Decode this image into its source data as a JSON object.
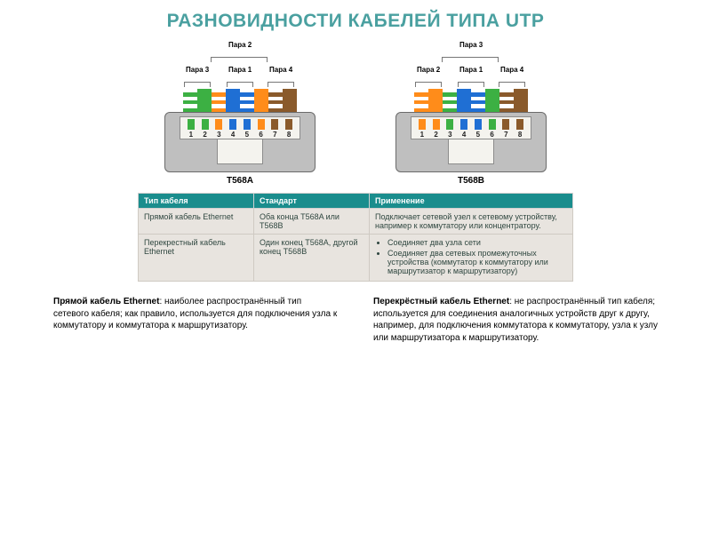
{
  "title": "РАЗНОВИДНОСТИ КАБЕЛЕЙ ТИПА UTP",
  "title_color": "#4aa0a0",
  "colors": {
    "green": "#3cb043",
    "orange": "#ff8c1a",
    "blue": "#1f6fd4",
    "brown": "#8a5a2b",
    "white": "#ffffff",
    "jack_body": "#bfbfbf",
    "jack_border": "#6b6b6b",
    "slot_bg": "#f4f3ee",
    "table_header_bg": "#1a8d8d",
    "table_cell_bg": "#e8e4df"
  },
  "connectors": [
    {
      "id": "t568a",
      "label": "T568A",
      "top_pair_label": "Пара 2",
      "bottom_pair_labels": [
        "Пара 3",
        "Пара 1",
        "Пара 4"
      ],
      "wires": [
        {
          "type": "striped",
          "stripe": "green"
        },
        {
          "type": "solid",
          "solid": "green"
        },
        {
          "type": "striped",
          "stripe": "orange"
        },
        {
          "type": "solid",
          "solid": "blue"
        },
        {
          "type": "striped",
          "stripe": "blue"
        },
        {
          "type": "solid",
          "solid": "orange"
        },
        {
          "type": "striped",
          "stripe": "brown"
        },
        {
          "type": "solid",
          "solid": "brown"
        }
      ]
    },
    {
      "id": "t568b",
      "label": "T568B",
      "top_pair_label": "Пара 3",
      "bottom_pair_labels": [
        "Пара 2",
        "Пара 1",
        "Пара 4"
      ],
      "wires": [
        {
          "type": "striped",
          "stripe": "orange"
        },
        {
          "type": "solid",
          "solid": "orange"
        },
        {
          "type": "striped",
          "stripe": "green"
        },
        {
          "type": "solid",
          "solid": "blue"
        },
        {
          "type": "striped",
          "stripe": "blue"
        },
        {
          "type": "solid",
          "solid": "green"
        },
        {
          "type": "striped",
          "stripe": "brown"
        },
        {
          "type": "solid",
          "solid": "brown"
        }
      ]
    }
  ],
  "pin_numbers": [
    "1",
    "2",
    "3",
    "4",
    "5",
    "6",
    "7",
    "8"
  ],
  "table": {
    "headers": [
      "Тип кабеля",
      "Стандарт",
      "Применение"
    ],
    "rows": [
      {
        "c1": "Прямой кабель Ethernet",
        "c2": "Оба конца T568A или T568B",
        "c3_text": "Подключает сетевой узел к сетевому устройству, например к коммутатору или концентратору.",
        "c3_list": null
      },
      {
        "c1": "Перекрестный кабель Ethernet",
        "c2": "Один конец T568A, другой конец T568B",
        "c3_text": null,
        "c3_list": [
          "Соединяет два узла сети",
          "Соединяет два сетевых промежуточных устройства (коммутатор к коммутатору или маршрутизатор к маршрутизатору)"
        ]
      }
    ]
  },
  "descriptions": {
    "left_bold": "Прямой кабель Ethernet",
    "left_text": ": наиболее распространённый тип сетевого кабеля; как правило, используется для подключения узла к коммутатору и коммутатора к маршрутизатору.",
    "right_bold": "Перекрёстный кабель Ethernet",
    "right_text": ": не распространённый тип кабеля; используется для соединения аналогичных устройств друг к другу, например, для подключения коммутатора к коммутатору, узла к узлу или маршрутизатора к маршрутизатору."
  }
}
